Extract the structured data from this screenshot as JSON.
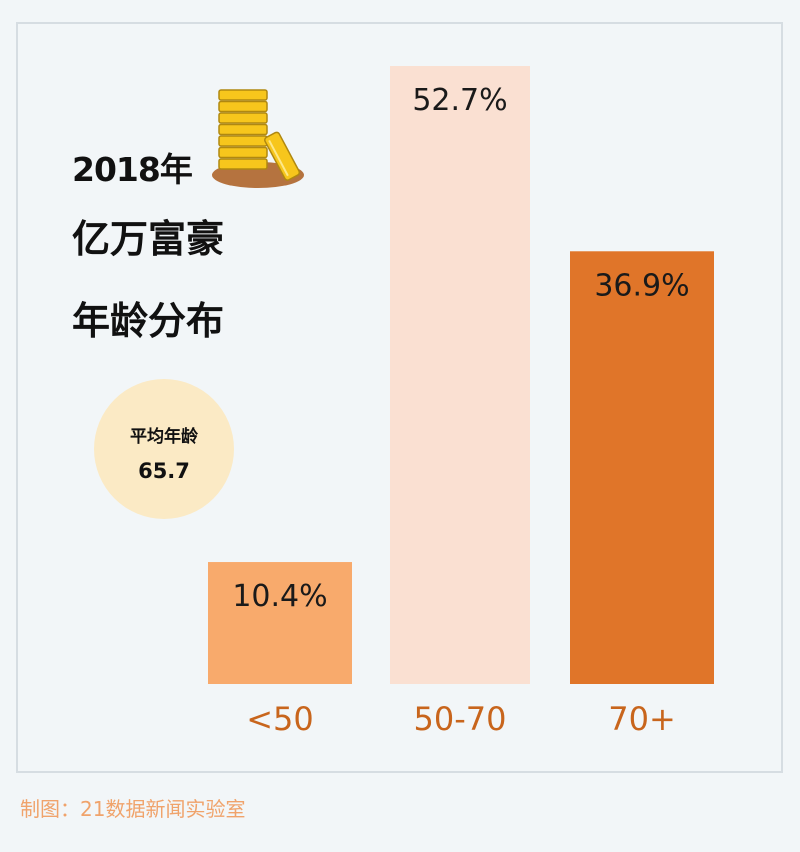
{
  "title": {
    "year": "2018年",
    "main": "亿万富豪",
    "sub": "年龄分布"
  },
  "average": {
    "label": "平均年龄",
    "value": "65.7"
  },
  "credit": "制图：21数据新闻实验室",
  "icon": "gold-coins-stack-icon",
  "chart_data": {
    "type": "bar",
    "categories": [
      "<50",
      "50-70",
      "70+"
    ],
    "values": [
      10.4,
      52.7,
      36.9
    ],
    "value_labels": [
      "10.4%",
      "52.7%",
      "36.9%"
    ],
    "unit": "%",
    "ylim": [
      0,
      55
    ],
    "grid": false,
    "colors": [
      "#f8aa6c",
      "#fae0d2",
      "#e07529"
    ],
    "category_label_color": "#c8651c"
  }
}
